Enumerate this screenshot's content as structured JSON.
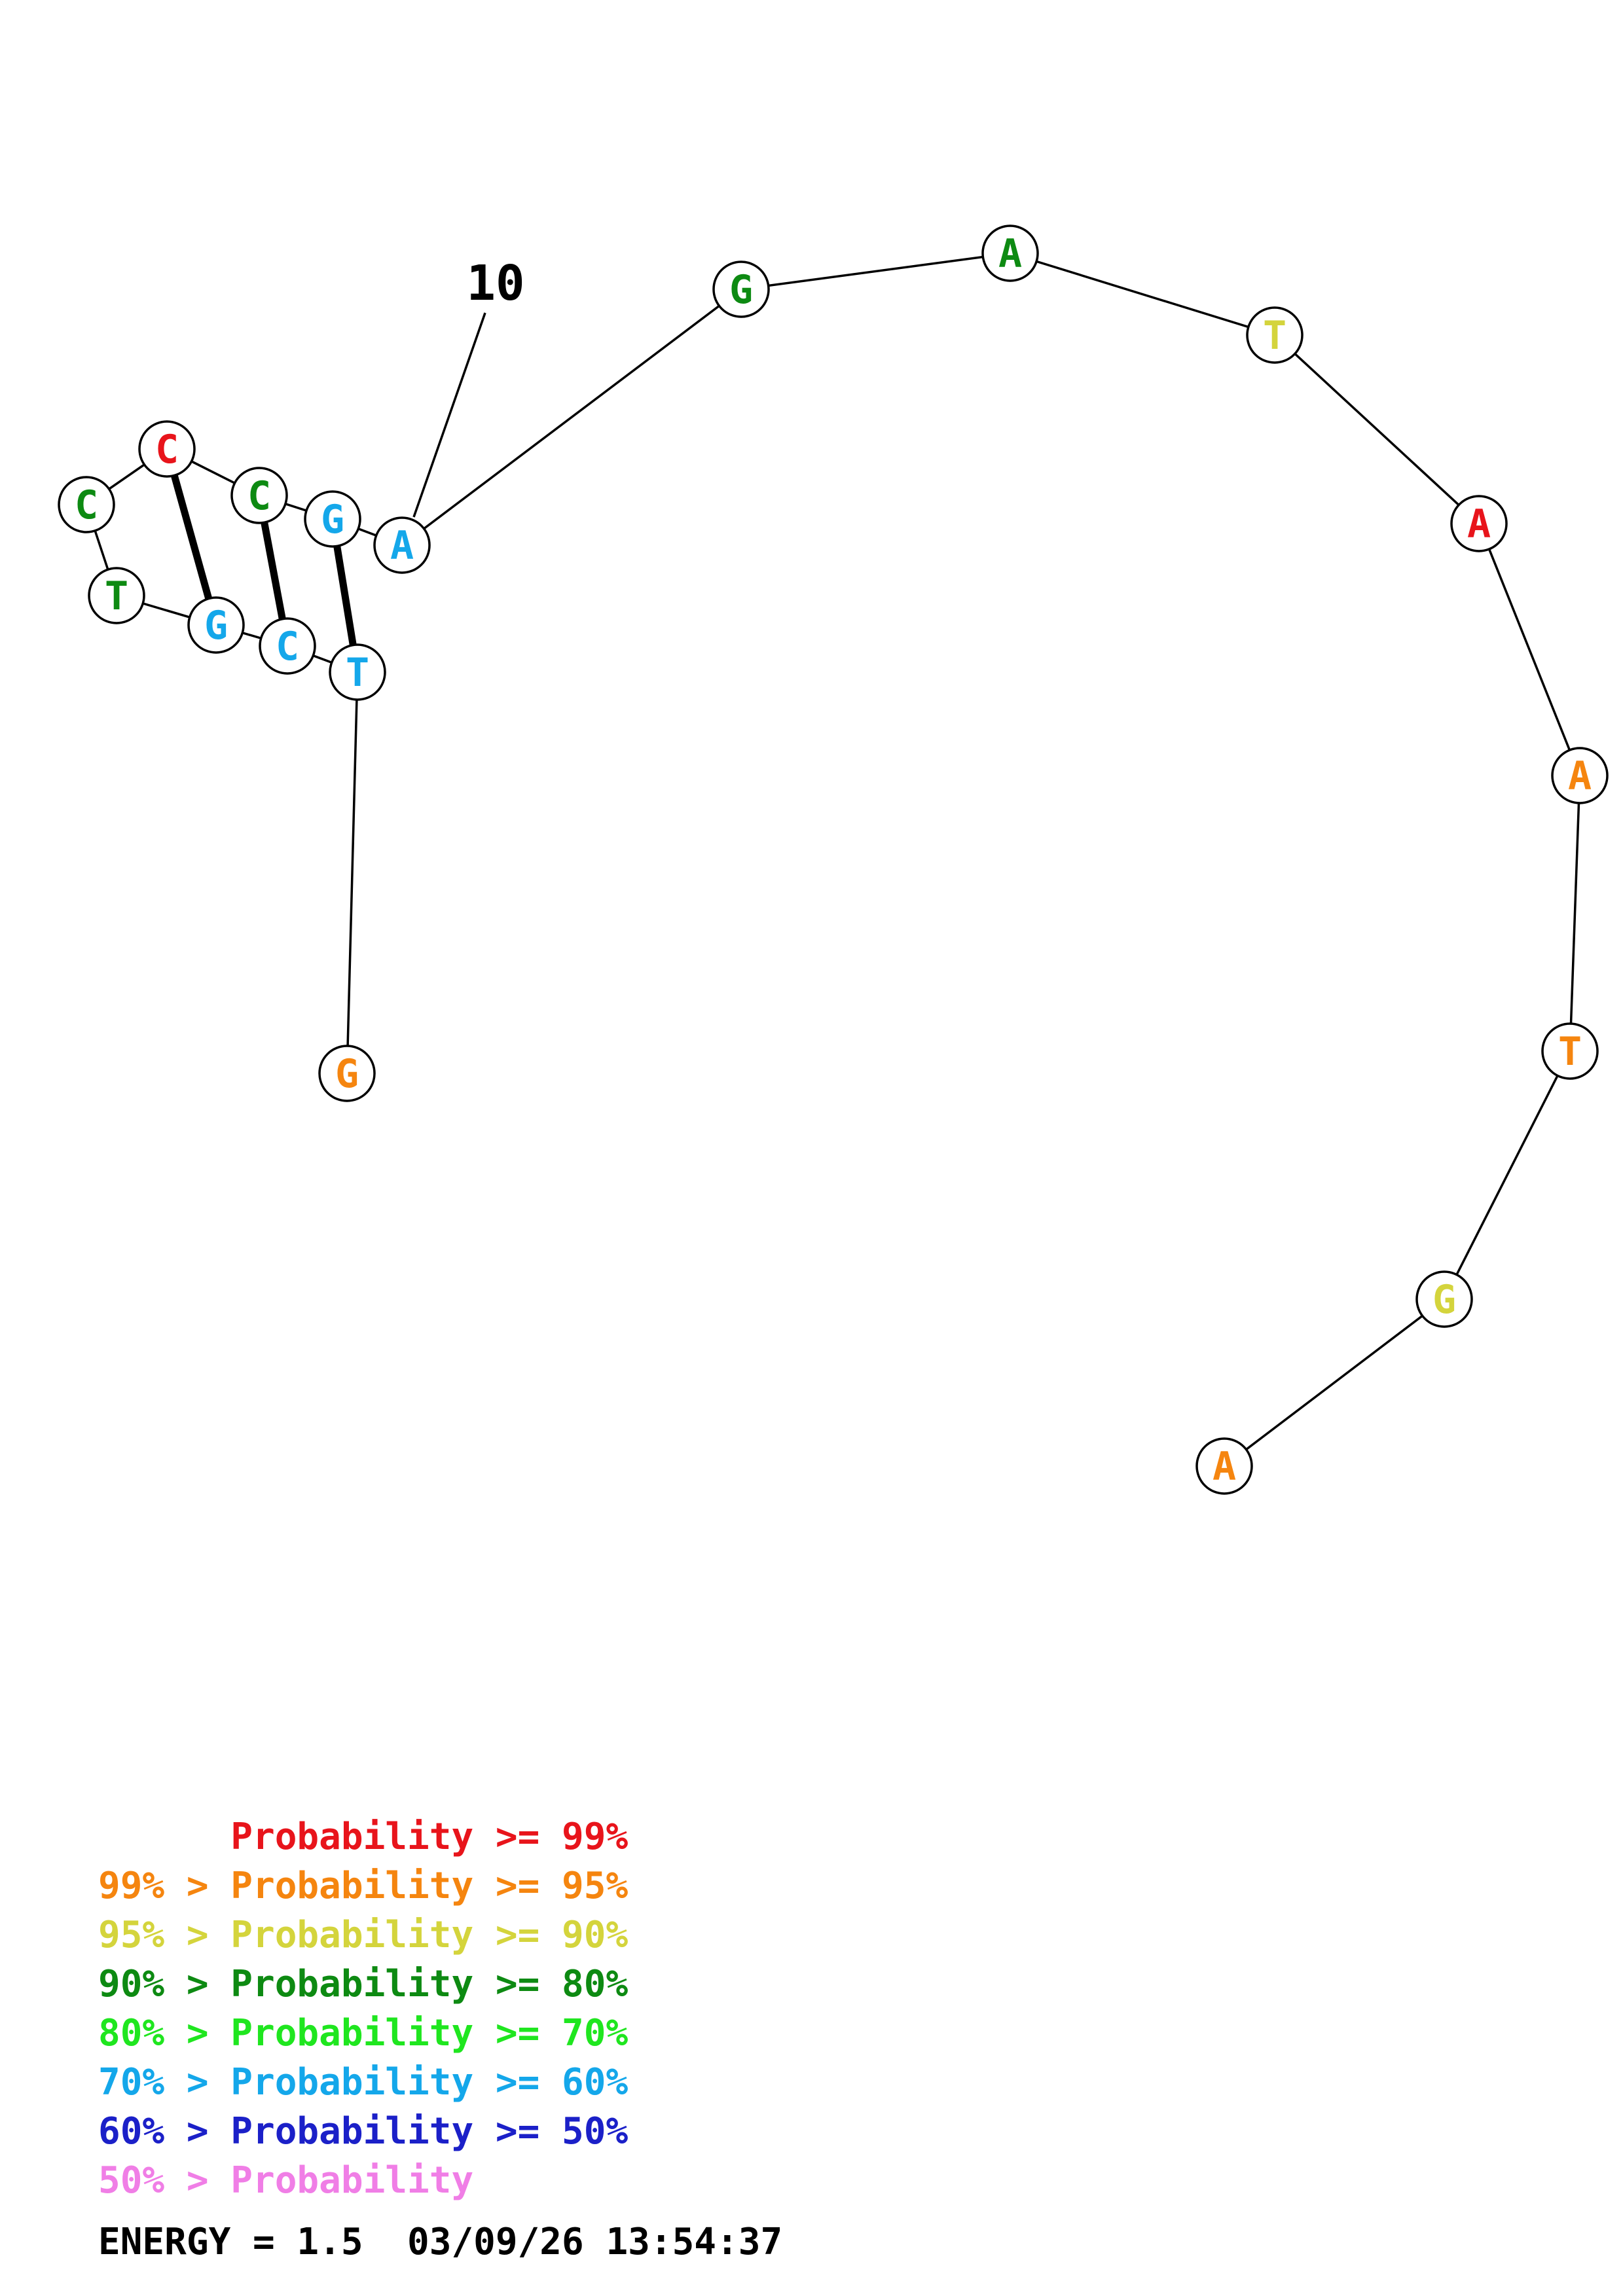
{
  "diagram": {
    "sequence": [
      "G",
      "T",
      "C",
      "G",
      "T",
      "C",
      "C",
      "C",
      "G",
      "A",
      "G",
      "A",
      "T",
      "A",
      "A",
      "T",
      "G",
      "A"
    ],
    "probability_level": [
      1,
      5,
      5,
      5,
      3,
      3,
      0,
      3,
      5,
      5,
      3,
      3,
      2,
      0,
      1,
      1,
      2,
      1
    ],
    "base_pairs": [
      [
        2,
        9
      ],
      [
        3,
        8
      ],
      [
        4,
        7
      ]
    ],
    "tick_label": "10",
    "tick_nucleotide_index": 10
  },
  "legend": {
    "colors": [
      "#e8141b",
      "#f5850f",
      "#d4d43c",
      "#0d8a12",
      "#1fe61f",
      "#14a7ea",
      "#1b20c8",
      "#f07ee6"
    ],
    "lines": [
      "      Probability >= 99%",
      "99% > Probability >= 95%",
      "95% > Probability >= 90%",
      "90% > Probability >= 80%",
      "80% > Probability >= 70%",
      "70% > Probability >= 60%",
      "60% > Probability >= 50%",
      "50% > Probability"
    ]
  },
  "energy": "ENERGY = 1.5  03/09/26 13:54:37"
}
